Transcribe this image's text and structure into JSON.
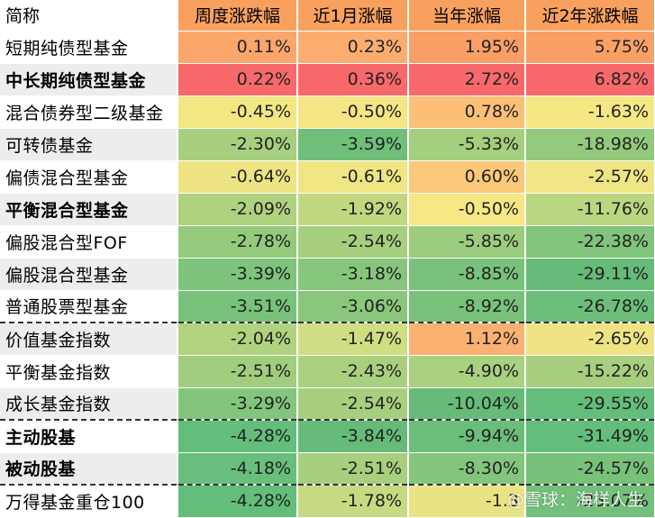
{
  "headers": [
    "简称",
    "周度涨跌幅",
    "近1月涨幅",
    "当年涨幅",
    "近2年涨跌幅"
  ],
  "rows": [
    {
      "name": "短期纯债型基金",
      "bold": false,
      "values": [
        "0.11%",
        "0.23%",
        "1.95%",
        "5.75%"
      ],
      "colors": [
        "#fba76b",
        "#fbad70",
        "#fa9f66",
        "#f8a066"
      ]
    },
    {
      "name": "中长期纯债型基金",
      "bold": true,
      "values": [
        "0.22%",
        "0.36%",
        "2.72%",
        "6.82%"
      ],
      "colors": [
        "#f8696b",
        "#f8696b",
        "#f8696b",
        "#f8696b"
      ]
    },
    {
      "name": "混合债券型二级基金",
      "bold": false,
      "values": [
        "-0.45%",
        "-0.50%",
        "0.78%",
        "-1.63%"
      ],
      "colors": [
        "#f2e783",
        "#f5e584",
        "#fbbf76",
        "#f5e884"
      ]
    },
    {
      "name": "可转债基金",
      "bold": false,
      "values": [
        "-2.30%",
        "-3.59%",
        "-5.33%",
        "-18.98%"
      ],
      "colors": [
        "#a6cf7f",
        "#6fbf7b",
        "#a4cf7e",
        "#92c97c"
      ]
    },
    {
      "name": "偏债混合型基金",
      "bold": false,
      "values": [
        "-0.64%",
        "-0.61%",
        "0.60%",
        "-2.57%"
      ],
      "colors": [
        "#eee483",
        "#f0e583",
        "#fbc879",
        "#f0e584"
      ]
    },
    {
      "name": "平衡混合型基金",
      "bold": true,
      "values": [
        "-2.09%",
        "-1.92%",
        "-0.50%",
        "-11.76%"
      ],
      "colors": [
        "#afd27f",
        "#c1d880",
        "#f8e785",
        "#bad680"
      ]
    },
    {
      "name": "偏股混合型FOF",
      "bold": false,
      "values": [
        "-2.78%",
        "-2.54%",
        "-5.85%",
        "-22.38%"
      ],
      "colors": [
        "#95ca7d",
        "#a6cf7e",
        "#9ccd7e",
        "#81c47c"
      ]
    },
    {
      "name": "偏股混合型基金",
      "bold": false,
      "values": [
        "-3.39%",
        "-3.18%",
        "-8.85%",
        "-29.11%"
      ],
      "colors": [
        "#7ec47c",
        "#86c67c",
        "#79c27b",
        "#66bb79"
      ]
    },
    {
      "name": "普通股票型基金",
      "bold": false,
      "values": [
        "-3.51%",
        "-3.06%",
        "-8.92%",
        "-26.78%"
      ],
      "colors": [
        "#79c27b",
        "#8ac77c",
        "#78c27b",
        "#6dbe7a"
      ]
    },
    {
      "name": "价值基金指数",
      "bold": false,
      "values": [
        "-2.04%",
        "-1.47%",
        "1.12%",
        "-2.65%"
      ],
      "colors": [
        "#b1d37f",
        "#d1dd82",
        "#fbb171",
        "#efe484"
      ]
    },
    {
      "name": "平衡基金指数",
      "bold": false,
      "values": [
        "-2.51%",
        "-2.43%",
        "-4.90%",
        "-15.22%"
      ],
      "colors": [
        "#a0cd7e",
        "#a9d07f",
        "#a9d17f",
        "#a7cf7f"
      ]
    },
    {
      "name": "成长基金指数",
      "bold": false,
      "values": [
        "-3.29%",
        "-2.54%",
        "-10.04%",
        "-29.55%"
      ],
      "colors": [
        "#83c57c",
        "#a6cf7e",
        "#67bb79",
        "#63be7b"
      ]
    },
    {
      "name": "主动股基",
      "bold": true,
      "values": [
        "-4.28%",
        "-3.84%",
        "-9.94%",
        "-31.49%"
      ],
      "colors": [
        "#63be7b",
        "#66bb79",
        "#6bbd7a",
        "#63be7b"
      ]
    },
    {
      "name": "被动股基",
      "bold": true,
      "values": [
        "-4.18%",
        "-2.51%",
        "-8.30%",
        "-24.57%"
      ],
      "colors": [
        "#67bf7b",
        "#a6cf7e",
        "#83c57c",
        "#78c17b"
      ]
    },
    {
      "name": "万得基金重仓100",
      "bold": false,
      "values": [
        "-4.28%",
        "-1.78%",
        "-1.3",
        "-25.07%"
      ],
      "colors": [
        "#63be7b",
        "#c6da81",
        "#e9e384",
        "#74c07b"
      ]
    }
  ],
  "watermark": "@雪球：海样人生"
}
